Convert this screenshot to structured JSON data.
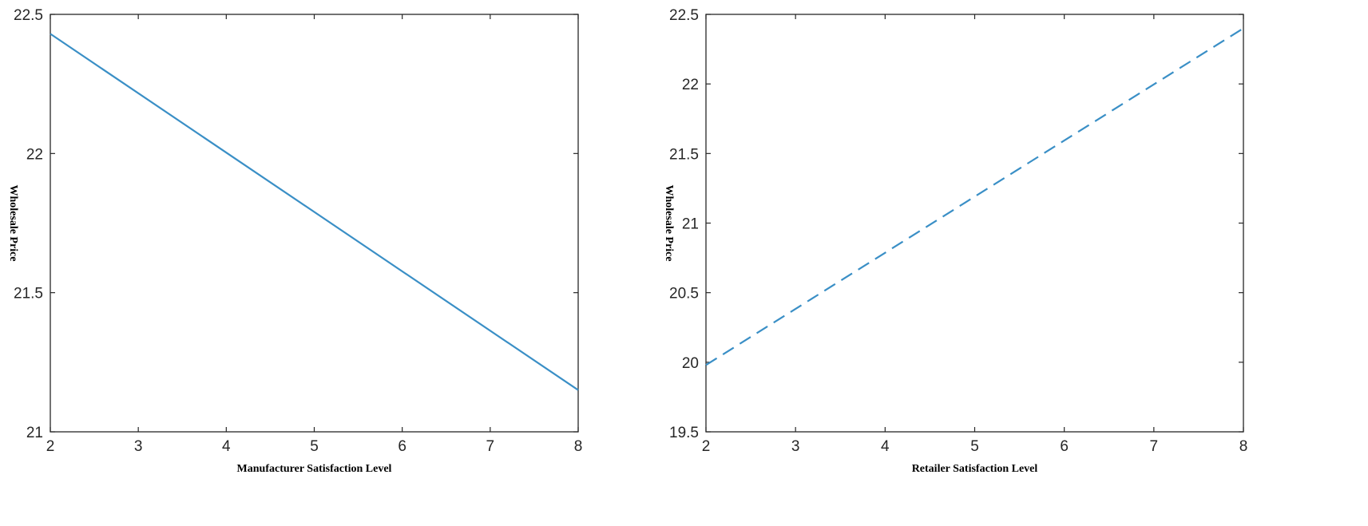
{
  "chart_data": [
    {
      "type": "line",
      "title": "",
      "xlabel": "Manufacturer Satisfaction Level",
      "ylabel": "Wholesale Price",
      "xlim": [
        2,
        8
      ],
      "ylim": [
        21,
        22.5
      ],
      "xticks": [
        "2",
        "3",
        "4",
        "5",
        "6",
        "7",
        "8"
      ],
      "yticks": [
        "21",
        "21.5",
        "22",
        "22.5"
      ],
      "grid": false,
      "series": [
        {
          "x": [
            2,
            8
          ],
          "y": [
            22.43,
            21.15
          ],
          "color": "#3a8fc6",
          "style": "solid"
        }
      ]
    },
    {
      "type": "line",
      "title": "",
      "xlabel": "Retailer Satisfaction Level",
      "ylabel": "Wholesale Price",
      "xlim": [
        2,
        8
      ],
      "ylim": [
        19.5,
        22.5
      ],
      "xticks": [
        "2",
        "3",
        "4",
        "5",
        "6",
        "7",
        "8"
      ],
      "yticks": [
        "19.5",
        "20",
        "20.5",
        "21",
        "21.5",
        "22",
        "22.5"
      ],
      "grid": false,
      "series": [
        {
          "x": [
            2,
            8
          ],
          "y": [
            19.98,
            22.4
          ],
          "color": "#3a8fc6",
          "style": "dashed"
        }
      ]
    }
  ]
}
